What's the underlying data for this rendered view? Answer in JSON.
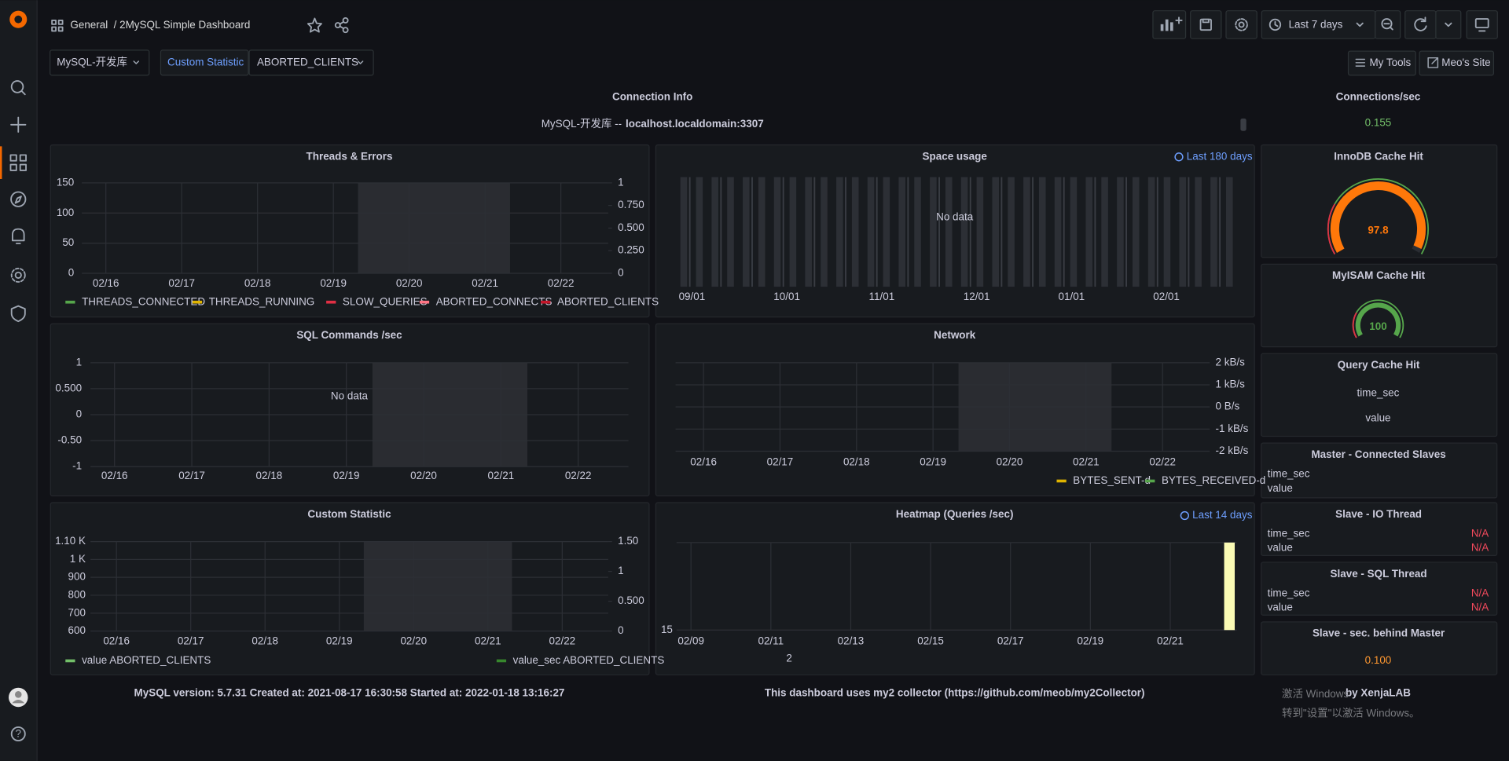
{
  "header": {
    "folder": "General",
    "title": "/ 2MySQL Simple Dashboard",
    "time_range": "Last 7 days"
  },
  "variables": {
    "instance": "MySQL-开发库",
    "custom_label": "Custom Statistic",
    "custom_value": "ABORTED_CLIENTS"
  },
  "links": [
    "My Tools",
    "Meo's Site"
  ],
  "connection_info": {
    "title": "Connection Info",
    "instance": "MySQL-开发库 --",
    "host": "localhost.localdomain:3307"
  },
  "connections_per_sec": {
    "title": "Connections/sec",
    "value": 0.155
  },
  "threads_errors": {
    "title": "Threads & Errors",
    "xticks": [
      "02/16",
      "02/17",
      "02/18",
      "02/19",
      "02/20",
      "02/21",
      "02/22"
    ],
    "ylim": [
      0,
      150
    ],
    "yticks": [
      0,
      50,
      100,
      150
    ],
    "y2lim": [
      0,
      1
    ],
    "y2ticks": [
      0,
      {
        "value": 0.25,
        "label": "0.250"
      },
      {
        "value": 0.5,
        "label": "0.500"
      },
      {
        "value": 0.75,
        "label": "0.750"
      },
      1
    ],
    "legend": [
      {
        "name": "THREADS_CONNECTED",
        "color": "#56a64b"
      },
      {
        "name": "THREADS_RUNNING",
        "color": "#e0b400"
      },
      {
        "name": "SLOW_QUERIES",
        "color": "#e02f44"
      },
      {
        "name": "ABORTED_CONNECTS",
        "color": "#ff7383"
      },
      {
        "name": "ABORTED_CLIENTS",
        "color": "#c4162a"
      }
    ]
  },
  "space_usage": {
    "title": "Space usage",
    "time_override": "Last 180 days",
    "message": "No data",
    "xticks": [
      "09/01",
      "10/01",
      "11/01",
      "12/01",
      "01/01",
      "02/01"
    ]
  },
  "sql_commands": {
    "title": "SQL Commands /sec",
    "message": "No data",
    "xticks": [
      "02/16",
      "02/17",
      "02/18",
      "02/19",
      "02/20",
      "02/21",
      "02/22"
    ],
    "ylim": [
      -1,
      1
    ],
    "yticks": [
      -1,
      {
        "value": -0.5,
        "label": "-0.50"
      },
      0,
      {
        "value": 0.5,
        "label": "0.500"
      },
      1
    ]
  },
  "network": {
    "title": "Network",
    "xticks": [
      "02/16",
      "02/17",
      "02/18",
      "02/19",
      "02/20",
      "02/21",
      "02/22"
    ],
    "ylim": [
      -2000,
      2000
    ],
    "yticks": [
      {
        "value": -2000,
        "label": "-2 kB/s"
      },
      {
        "value": -1000,
        "label": "-1 kB/s"
      },
      {
        "value": 0,
        "label": "0 B/s"
      },
      {
        "value": 1000,
        "label": "1 kB/s"
      },
      {
        "value": 2000,
        "label": "2 kB/s"
      }
    ],
    "legend": [
      {
        "name": "BYTES_SENT-d",
        "color": "#e0b400"
      },
      {
        "name": "BYTES_RECEIVED-d",
        "color": "#56a64b"
      }
    ]
  },
  "custom_statistic": {
    "title": "Custom Statistic",
    "xticks": [
      "02/16",
      "02/17",
      "02/18",
      "02/19",
      "02/20",
      "02/21",
      "02/22"
    ],
    "ylim": [
      600,
      1100
    ],
    "yticks": [
      600,
      700,
      800,
      900,
      {
        "value": 1000,
        "label": "1 K"
      },
      {
        "value": 1100,
        "label": "1.10 K"
      }
    ],
    "y2lim": [
      0,
      1.5
    ],
    "y2ticks": [
      0,
      {
        "value": 0.5,
        "label": "0.500"
      },
      1,
      {
        "value": 1.5,
        "label": "1.50"
      }
    ],
    "legend": [
      {
        "name": "value ABORTED_CLIENTS",
        "color": "#73bf69"
      },
      {
        "name": "value_sec ABORTED_CLIENTS",
        "color": "#37872d"
      }
    ]
  },
  "heatmap": {
    "title": "Heatmap (Queries /sec)",
    "time_override": "Last 14 days",
    "xticks": [
      "02/09",
      "02/11",
      "02/13",
      "02/15",
      "02/17",
      "02/19",
      "02/21"
    ],
    "y_label": "15",
    "legend_label": "2"
  },
  "innodb_cache_hit": {
    "title": "InnoDB Cache Hit",
    "value": 97.8,
    "min": 0,
    "max": 100,
    "color": "#ff780a"
  },
  "myisam_cache_hit": {
    "title": "MyISAM Cache Hit",
    "value": 100,
    "min": 0,
    "max": 100,
    "color": "#56a64b"
  },
  "query_cache_hit": {
    "title": "Query Cache Hit",
    "fields": [
      "time_sec",
      "value"
    ]
  },
  "master_slaves": {
    "title": "Master - Connected Slaves",
    "fields": [
      "time_sec",
      "value"
    ]
  },
  "slave_io": {
    "title": "Slave - IO Thread",
    "rows": [
      [
        "time_sec",
        "N/A"
      ],
      [
        "value",
        "N/A"
      ]
    ]
  },
  "slave_sql": {
    "title": "Slave - SQL Thread",
    "rows": [
      [
        "time_sec",
        "N/A"
      ],
      [
        "value",
        "N/A"
      ]
    ]
  },
  "slave_behind": {
    "title": "Slave - sec. behind Master",
    "value": 0.1,
    "value_label": "0.100"
  },
  "footer": {
    "versions": "MySQL version: 5.7.31 Created at: 2021-08-17 16:30:58 Started at: 2022-01-18 13:16:27",
    "collector": "This dashboard uses my2 collector (https://github.com/meob/my2Collector)",
    "credit": "by XenjaLAB"
  },
  "watermark": [
    "激活 Windows",
    "转到\"设置\"以激活 Windows。"
  ]
}
